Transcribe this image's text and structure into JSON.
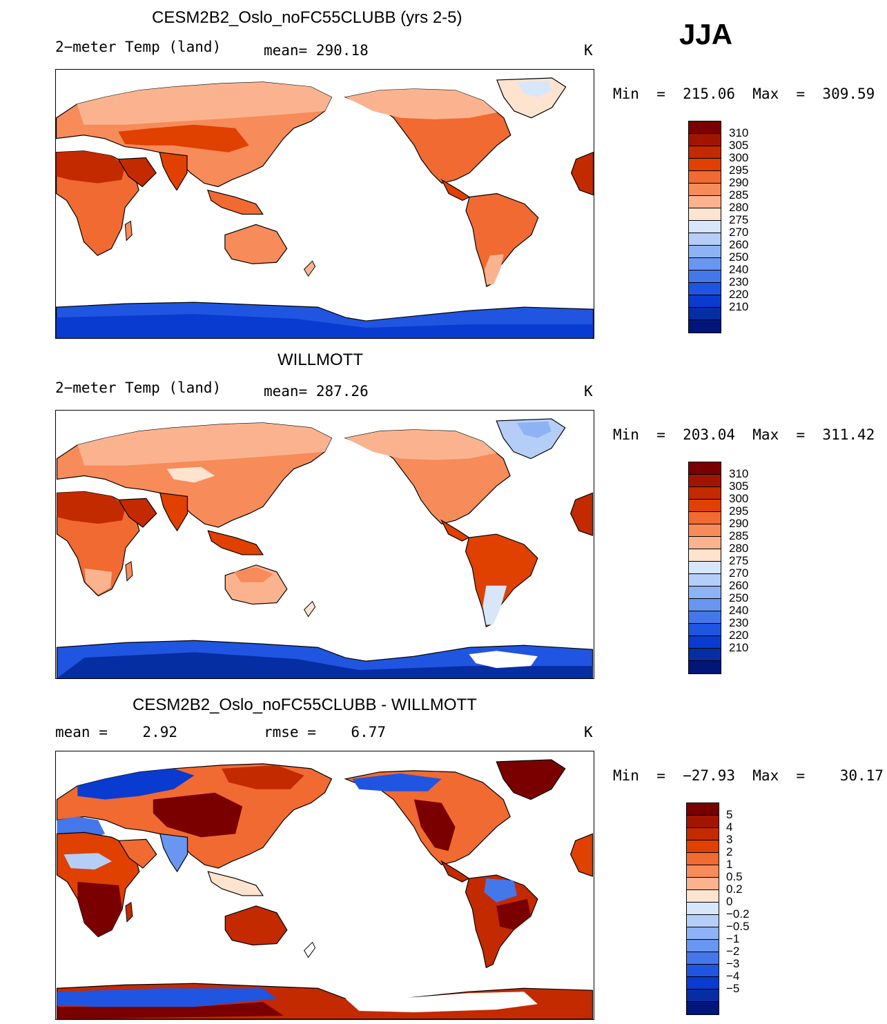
{
  "season": "JJA",
  "colors": {
    "abs_scale": [
      "#7a0000",
      "#a11500",
      "#c32a00",
      "#e04000",
      "#f06a32",
      "#f78b5a",
      "#fbb38f",
      "#fee3cf",
      "#d8e6fa",
      "#b4cef7",
      "#8db3f5",
      "#6896f0",
      "#4377ea",
      "#2055e2",
      "#0a3bd0",
      "#062ea3",
      "#00167a"
    ],
    "diff_scale": [
      "#7a0000",
      "#a11500",
      "#c32a00",
      "#e04000",
      "#f06a32",
      "#f78b5a",
      "#fbb38f",
      "#fee3cf",
      "#d8e6fa",
      "#b4cef7",
      "#8db3f5",
      "#6896f0",
      "#4377ea",
      "#2055e2",
      "#0a3bd0",
      "#062ea3",
      "#00167a"
    ]
  },
  "panels": [
    {
      "id": "model",
      "title": "CESM2B2_Oslo_noFC55CLUBB (yrs 2-5)",
      "left_label": "2−meter Temp (land)",
      "center_label": "mean= 290.18",
      "units": "K",
      "minmax": "Min  =  215.06  Max  =  309.59",
      "colorbar_labels": [
        "310",
        "305",
        "300",
        "295",
        "290",
        "285",
        "280",
        "275",
        "270",
        "260",
        "250",
        "240",
        "230",
        "220",
        "210"
      ]
    },
    {
      "id": "obs",
      "title": "WILLMOTT",
      "left_label": "2−meter Temp (land)",
      "center_label": "mean= 287.26",
      "units": "K",
      "minmax": "Min  =  203.04  Max  =  311.42",
      "colorbar_labels": [
        "310",
        "305",
        "300",
        "295",
        "290",
        "285",
        "280",
        "275",
        "270",
        "260",
        "250",
        "240",
        "230",
        "220",
        "210"
      ]
    },
    {
      "id": "diff",
      "title": "CESM2B2_Oslo_noFC55CLUBB - WILLMOTT",
      "left_label": "mean =    2.92",
      "center_label": "rmse =    6.77",
      "units": "K",
      "minmax": "Min  =  −27.93  Max  =    30.17",
      "colorbar_labels": [
        "5",
        "4",
        "3",
        "2",
        "1",
        "0.5",
        "0.2",
        "0",
        "−0.2",
        "−0.5",
        "−1",
        "−2",
        "−3",
        "−4",
        "−5"
      ]
    }
  ]
}
